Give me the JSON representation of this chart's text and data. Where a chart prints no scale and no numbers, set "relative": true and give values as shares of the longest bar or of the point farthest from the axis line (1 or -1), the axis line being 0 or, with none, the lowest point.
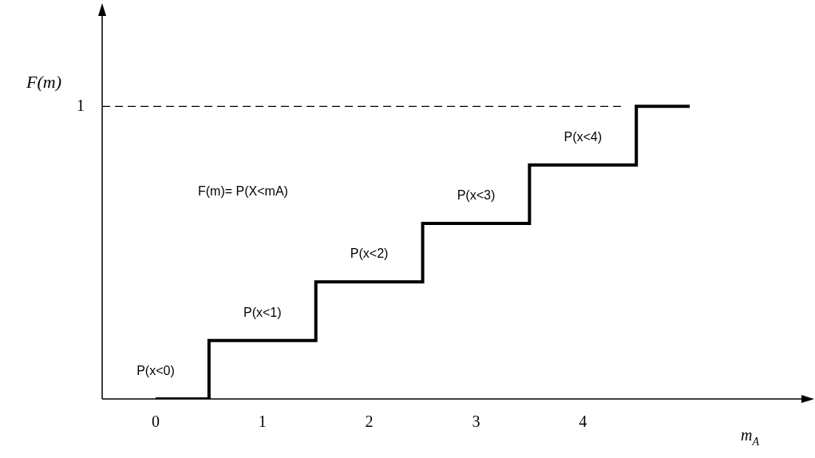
{
  "chart_data": {
    "type": "step",
    "relative": true,
    "ylabel": "F(m)",
    "xlabel": "m$_{A}$",
    "categories": [
      "0",
      "1",
      "2",
      "3",
      "4",
      null
    ],
    "series": [
      {
        "color": "#000000",
        "values": [
          0,
          0.2,
          0.4,
          0.6,
          0.8,
          1
        ]
      }
    ],
    "ref_lines": [
      {
        "axis": "y",
        "value": 1,
        "label": "1",
        "line_style": "dashed",
        "color": "#000000"
      }
    ],
    "annotations": [
      {
        "text": "P(x<0)",
        "x": "0",
        "y": 0
      },
      {
        "text": "P(x<1)",
        "x": "1",
        "y": 0.2
      },
      {
        "text": "P(x<2)",
        "x": "2",
        "y": 0.4
      },
      {
        "text": "P(x<3)",
        "x": "3",
        "y": 0.6
      },
      {
        "text": "P(x<4)",
        "x": "4",
        "y": 0.8
      },
      "F(m)= P(X<mA)"
    ],
    "legend": false,
    "grid": false,
    "marker": "none",
    "line_style": "solid"
  }
}
